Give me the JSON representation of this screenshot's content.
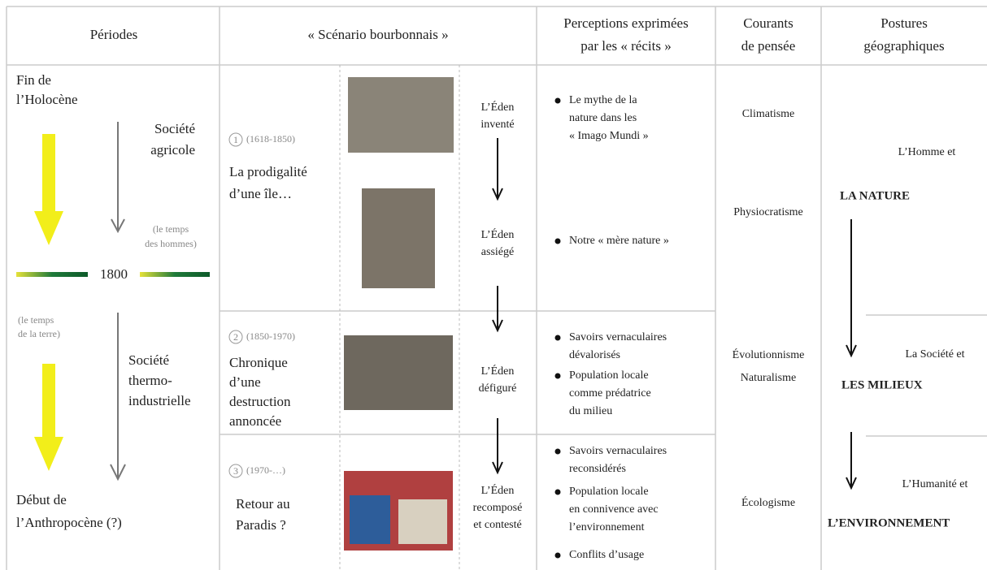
{
  "headers": [
    [
      "Périodes"
    ],
    [
      "« Scénario bourbonnais »"
    ],
    [
      "Perceptions exprimées",
      "par les « récits »"
    ],
    [
      "Courants",
      "de pensée"
    ],
    [
      "Postures",
      "géographiques"
    ]
  ],
  "periods": {
    "start": [
      "Fin de",
      "l’Holocène"
    ],
    "society1": [
      "Société",
      "agricole"
    ],
    "time1": [
      "(le temps",
      "des hommes)"
    ],
    "year": "1800",
    "time2": [
      "(le temps",
      "de la terre)"
    ],
    "society2": [
      "Société",
      "thermo-",
      "industrielle"
    ],
    "end": [
      "Début de",
      "l’Anthropocène (?)"
    ]
  },
  "scenarios": [
    {
      "number": "1",
      "dates": "(1618-1850)",
      "title": [
        "La prodigalité",
        "d’une île…"
      ]
    },
    {
      "number": "2",
      "dates": "(1850-1970)",
      "title": [
        "Chronique",
        "d’une",
        "destruction",
        "annoncée"
      ]
    },
    {
      "number": "3",
      "dates": "(1970-…)",
      "title": [
        "Retour au",
        "Paradis ?"
      ]
    }
  ],
  "eden": [
    [
      "L’Éden",
      "inventé"
    ],
    [
      "L’Éden",
      "assiégé"
    ],
    [
      "L’Éden",
      "défiguré"
    ],
    [
      "L’Éden",
      "recomposé",
      "et contesté"
    ]
  ],
  "perceptions": [
    [
      [
        "Le mythe de la",
        "nature dans les",
        "« Imago Mundi »"
      ]
    ],
    [
      [
        "Notre « mère nature »"
      ]
    ],
    [
      [
        "Savoirs vernaculaires",
        "dévalorisés"
      ],
      [
        "Population locale",
        "comme prédatrice",
        "du milieu"
      ]
    ],
    [
      [
        "Savoirs vernaculaires",
        "reconsidérés"
      ],
      [
        "Population locale",
        "en connivence avec",
        "l’environnement"
      ],
      [
        "Conflits d’usage"
      ]
    ]
  ],
  "courants": [
    "Climatisme",
    "Physiocratisme",
    "Évolutionnisme",
    "Naturalisme",
    "Écologisme"
  ],
  "postures": [
    {
      "intro": "L’Homme et",
      "key": "LA NATURE"
    },
    {
      "intro": "La Société et",
      "key": "LES MILIEUX"
    },
    {
      "intro": "L’Humanité et",
      "key": "L’ENVIRONNEMENT"
    }
  ]
}
